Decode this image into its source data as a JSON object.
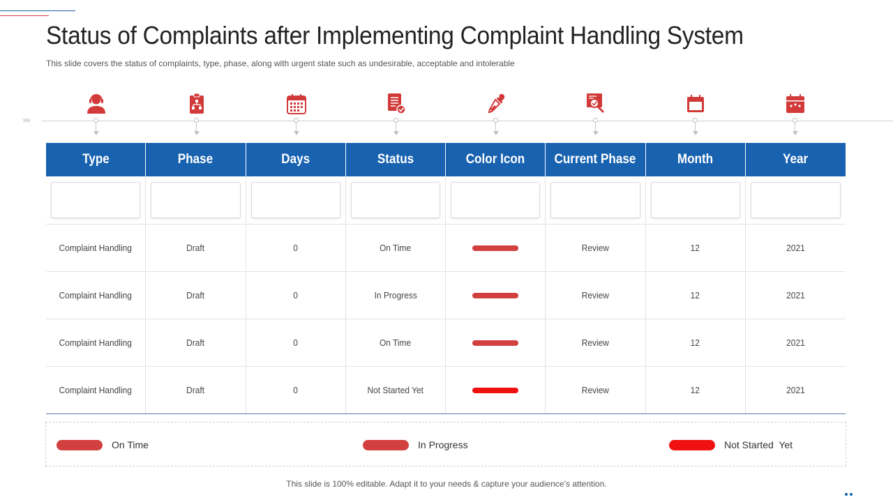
{
  "slide": {
    "title": "Status of Complaints after Implementing Complaint Handling System",
    "subtitle": "This slide covers the status of complaints, type, phase, along with urgent state such as undesirable, acceptable and intolerable",
    "footer": "This slide is 100% editable. Adapt it to your needs & capture your audience’s attention."
  },
  "colors": {
    "header_blue": "#1862b0",
    "icon_red": "#d23a3a",
    "on_time": "#d23f3f",
    "in_progress": "#d23f3f",
    "not_started": "#f01010"
  },
  "icons": [
    "headset-agent-icon",
    "org-chart-clipboard-icon",
    "calendar-grid-icon",
    "document-check-icon",
    "eyedropper-icon",
    "magnifier-report-icon",
    "calendar-icon",
    "calendar-stars-icon"
  ],
  "table": {
    "headers": [
      "Type",
      "Phase",
      "Days",
      "Status",
      "Color Icon",
      "Current Phase",
      "Month",
      "Year"
    ],
    "rows": [
      {
        "type": "Complaint Handling",
        "phase": "Draft",
        "days": "0",
        "status": "On Time",
        "color": "#d23f3f",
        "current_phase": "Review",
        "month": "12",
        "year": "2021"
      },
      {
        "type": "Complaint Handling",
        "phase": "Draft",
        "days": "0",
        "status": "In Progress",
        "color": "#d23f3f",
        "current_phase": "Review",
        "month": "12",
        "year": "2021"
      },
      {
        "type": "Complaint Handling",
        "phase": "Draft",
        "days": "0",
        "status": "On Time",
        "color": "#d23f3f",
        "current_phase": "Review",
        "month": "12",
        "year": "2021"
      },
      {
        "type": "Complaint Handling",
        "phase": "Draft",
        "days": "0",
        "status": "Not Started Yet",
        "color": "#f01010",
        "current_phase": "Review",
        "month": "12",
        "year": "2021"
      }
    ]
  },
  "legend": [
    {
      "label": "On Time",
      "color": "#d23f3f"
    },
    {
      "label": "In Progress",
      "color": "#d23f3f"
    },
    {
      "label": "Not Started  Yet",
      "color": "#f01010"
    }
  ]
}
